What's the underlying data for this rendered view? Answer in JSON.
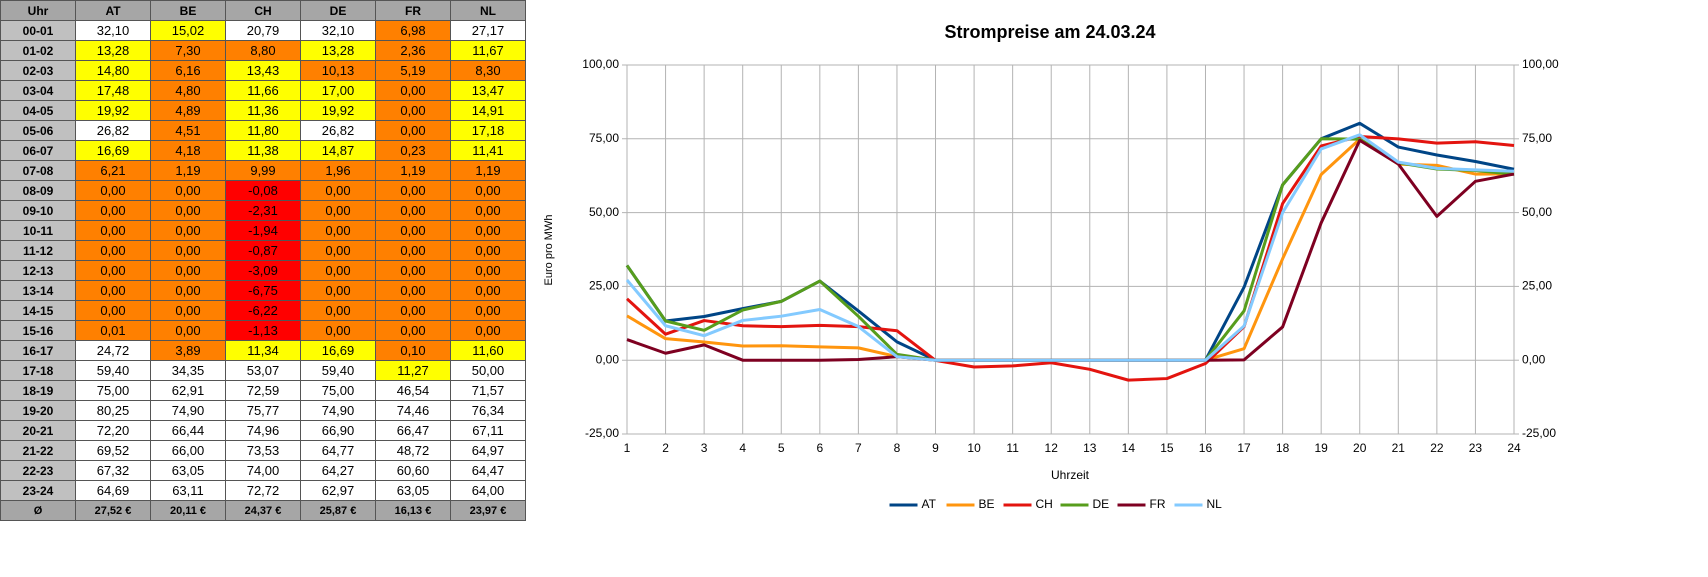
{
  "table": {
    "header": [
      "Uhr",
      "AT",
      "BE",
      "CH",
      "DE",
      "FR",
      "NL"
    ],
    "rows": [
      [
        "00-01",
        "32,10",
        "15,02",
        "20,79",
        "32,10",
        "6,98",
        "27,17"
      ],
      [
        "01-02",
        "13,28",
        "7,30",
        "8,80",
        "13,28",
        "2,36",
        "11,67"
      ],
      [
        "02-03",
        "14,80",
        "6,16",
        "13,43",
        "10,13",
        "5,19",
        "8,30"
      ],
      [
        "03-04",
        "17,48",
        "4,80",
        "11,66",
        "17,00",
        "0,00",
        "13,47"
      ],
      [
        "04-05",
        "19,92",
        "4,89",
        "11,36",
        "19,92",
        "0,00",
        "14,91"
      ],
      [
        "05-06",
        "26,82",
        "4,51",
        "11,80",
        "26,82",
        "0,00",
        "17,18"
      ],
      [
        "06-07",
        "16,69",
        "4,18",
        "11,38",
        "14,87",
        "0,23",
        "11,41"
      ],
      [
        "07-08",
        "6,21",
        "1,19",
        "9,99",
        "1,96",
        "1,19",
        "1,19"
      ],
      [
        "08-09",
        "0,00",
        "0,00",
        "-0,08",
        "0,00",
        "0,00",
        "0,00"
      ],
      [
        "09-10",
        "0,00",
        "0,00",
        "-2,31",
        "0,00",
        "0,00",
        "0,00"
      ],
      [
        "10-11",
        "0,00",
        "0,00",
        "-1,94",
        "0,00",
        "0,00",
        "0,00"
      ],
      [
        "11-12",
        "0,00",
        "0,00",
        "-0,87",
        "0,00",
        "0,00",
        "0,00"
      ],
      [
        "12-13",
        "0,00",
        "0,00",
        "-3,09",
        "0,00",
        "0,00",
        "0,00"
      ],
      [
        "13-14",
        "0,00",
        "0,00",
        "-6,75",
        "0,00",
        "0,00",
        "0,00"
      ],
      [
        "14-15",
        "0,00",
        "0,00",
        "-6,22",
        "0,00",
        "0,00",
        "0,00"
      ],
      [
        "15-16",
        "0,01",
        "0,00",
        "-1,13",
        "0,00",
        "0,00",
        "0,00"
      ],
      [
        "16-17",
        "24,72",
        "3,89",
        "11,34",
        "16,69",
        "0,10",
        "11,60"
      ],
      [
        "17-18",
        "59,40",
        "34,35",
        "53,07",
        "59,40",
        "11,27",
        "50,00"
      ],
      [
        "18-19",
        "75,00",
        "62,91",
        "72,59",
        "75,00",
        "46,54",
        "71,57"
      ],
      [
        "19-20",
        "80,25",
        "74,90",
        "75,77",
        "74,90",
        "74,46",
        "76,34"
      ],
      [
        "20-21",
        "72,20",
        "66,44",
        "74,96",
        "66,90",
        "66,47",
        "67,11"
      ],
      [
        "21-22",
        "69,52",
        "66,00",
        "73,53",
        "64,77",
        "48,72",
        "64,97"
      ],
      [
        "22-23",
        "67,32",
        "63,05",
        "74,00",
        "64,27",
        "60,60",
        "64,47"
      ],
      [
        "23-24",
        "64,69",
        "63,11",
        "72,72",
        "62,97",
        "63,05",
        "64,00"
      ]
    ],
    "footer": [
      "Ø",
      "27,52 €",
      "20,11 €",
      "24,37 €",
      "25,87 €",
      "16,13 €",
      "23,97 €"
    ],
    "palette": {
      "w": "#ffffff",
      "y": "#ffff00",
      "o": "#ff8000",
      "r": "#ff0000"
    },
    "row_colors": [
      "wywwow",
      "yooyoy",
      "yoyooo",
      "yoyyoy",
      "yoyyoy",
      "woywoy",
      "yoyyoy",
      "oooooo",
      "oorooo",
      "oorooo",
      "oorooo",
      "oorooo",
      "oorooo",
      "oorooo",
      "oorooo",
      "oorooo",
      "woyyoy",
      "wwwwyw",
      "wwwwww",
      "wwwwww",
      "wwwwww",
      "wwwwww",
      "wwwwww",
      "wwwwww"
    ]
  },
  "chart_data": {
    "type": "line",
    "title": "Strompreise am 24.03.24",
    "y_label": "Euro pro MWh",
    "x_label": "Uhrzeit",
    "x": [
      1,
      2,
      3,
      4,
      5,
      6,
      7,
      8,
      9,
      10,
      11,
      12,
      13,
      14,
      15,
      16,
      17,
      18,
      19,
      20,
      21,
      22,
      23,
      24
    ],
    "xlim": [
      1,
      24
    ],
    "xticks": [
      1,
      2,
      3,
      4,
      5,
      6,
      7,
      8,
      9,
      10,
      11,
      12,
      13,
      14,
      15,
      16,
      17,
      18,
      19,
      20,
      21,
      22,
      23,
      24
    ],
    "ylim": [
      -25,
      100
    ],
    "yticks": [
      {
        "value": -25,
        "label": "-25,00"
      },
      {
        "value": 0,
        "label": "0,00"
      },
      {
        "value": 25,
        "label": "25,00"
      },
      {
        "value": 50,
        "label": "50,00"
      },
      {
        "value": 75,
        "label": "75,00"
      },
      {
        "value": 100,
        "label": "100,00"
      }
    ],
    "y2lim": [
      -25,
      100
    ],
    "y2ticks": [
      {
        "value": -25,
        "label": "-25,00"
      },
      {
        "value": 0,
        "label": "0,00"
      },
      {
        "value": 25,
        "label": "25,00"
      },
      {
        "value": 50,
        "label": "50,00"
      },
      {
        "value": 75,
        "label": "75,00"
      },
      {
        "value": 100,
        "label": "100,00"
      }
    ],
    "grid": true,
    "legend": "bottom",
    "series": [
      {
        "name": "AT",
        "color": "#004586",
        "values": [
          32.1,
          13.28,
          14.8,
          17.48,
          19.92,
          26.82,
          16.69,
          6.21,
          0,
          0,
          0,
          0,
          0,
          0,
          0,
          0.01,
          24.72,
          59.4,
          75.0,
          80.25,
          72.2,
          69.52,
          67.32,
          64.69
        ]
      },
      {
        "name": "BE",
        "color": "#ff950e",
        "values": [
          15.02,
          7.3,
          6.16,
          4.8,
          4.89,
          4.51,
          4.18,
          1.19,
          0,
          0,
          0,
          0,
          0,
          0,
          0,
          0,
          3.89,
          34.35,
          62.91,
          74.9,
          66.44,
          66.0,
          63.05,
          63.11
        ]
      },
      {
        "name": "CH",
        "color": "#e3140f",
        "values": [
          20.79,
          8.8,
          13.43,
          11.66,
          11.36,
          11.8,
          11.38,
          9.99,
          -0.08,
          -2.31,
          -1.94,
          -0.87,
          -3.09,
          -6.75,
          -6.22,
          -1.13,
          11.34,
          53.07,
          72.59,
          75.77,
          74.96,
          73.53,
          74.0,
          72.72
        ]
      },
      {
        "name": "DE",
        "color": "#579d1c",
        "values": [
          32.1,
          13.28,
          10.13,
          17.0,
          19.92,
          26.82,
          14.87,
          1.96,
          0,
          0,
          0,
          0,
          0,
          0,
          0,
          0,
          16.69,
          59.4,
          75.0,
          74.9,
          66.9,
          64.77,
          64.27,
          62.97
        ]
      },
      {
        "name": "FR",
        "color": "#7e0021",
        "values": [
          6.98,
          2.36,
          5.19,
          0,
          0,
          0,
          0.23,
          1.19,
          0,
          0,
          0,
          0,
          0,
          0,
          0,
          0,
          0.1,
          11.27,
          46.54,
          74.46,
          66.47,
          48.72,
          60.6,
          63.05
        ]
      },
      {
        "name": "NL",
        "color": "#83caff",
        "values": [
          27.17,
          11.67,
          8.3,
          13.47,
          14.91,
          17.18,
          11.41,
          1.19,
          0,
          0,
          0,
          0,
          0,
          0,
          0,
          0,
          11.6,
          50.0,
          71.57,
          76.34,
          67.11,
          64.97,
          64.47,
          64.0
        ]
      }
    ]
  }
}
